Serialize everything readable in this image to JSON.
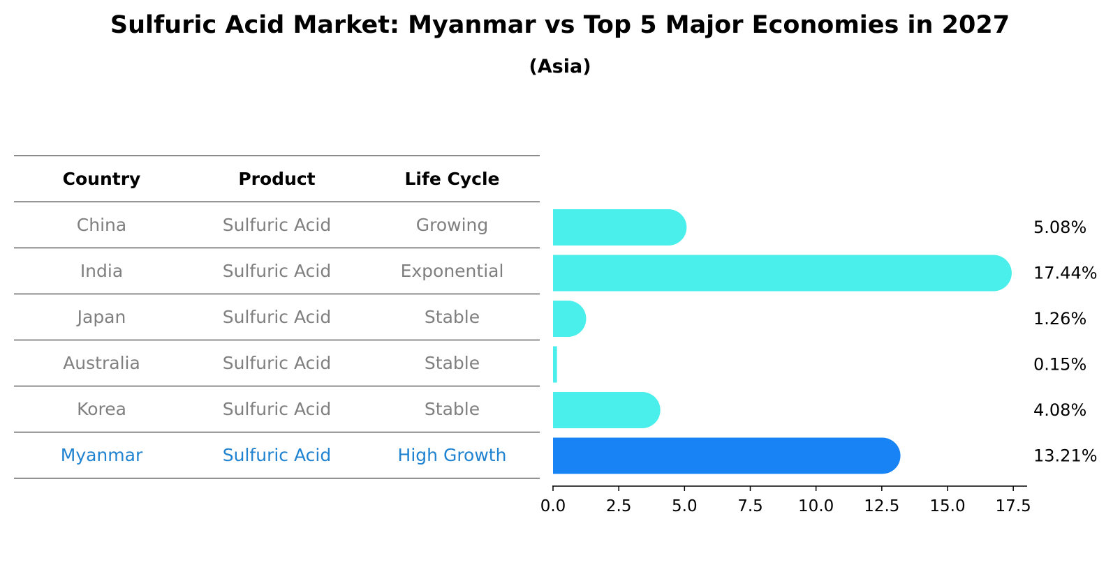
{
  "chart_data": {
    "type": "bar",
    "orientation": "horizontal",
    "title": "Sulfuric Acid Market: Myanmar vs Top 5 Major Economies in 2027",
    "subtitle": "(Asia)",
    "table": {
      "headers": [
        "Country",
        "Product",
        "Life Cycle"
      ],
      "rows": [
        [
          "China",
          "Sulfuric Acid",
          "Growing"
        ],
        [
          "India",
          "Sulfuric Acid",
          "Exponential"
        ],
        [
          "Japan",
          "Sulfuric Acid",
          "Stable"
        ],
        [
          "Australia",
          "Sulfuric Acid",
          "Stable"
        ],
        [
          "Korea",
          "Sulfuric Acid",
          "Stable"
        ],
        [
          "Myanmar",
          "Sulfuric Acid",
          "High Growth"
        ]
      ],
      "highlight_row": 5
    },
    "categories": [
      "China",
      "India",
      "Japan",
      "Australia",
      "Korea",
      "Myanmar"
    ],
    "values": [
      5.08,
      17.44,
      1.26,
      0.15,
      4.08,
      13.21
    ],
    "value_labels": [
      "5.08%",
      "17.44%",
      "1.26%",
      "0.15%",
      "4.08%",
      "13.21%"
    ],
    "xlim": [
      0,
      18.0
    ],
    "xticks": [
      0.0,
      2.5,
      5.0,
      7.5,
      10.0,
      12.5,
      15.0,
      17.5
    ],
    "xtick_labels": [
      "0.0",
      "2.5",
      "5.0",
      "7.5",
      "10.0",
      "12.5",
      "15.0",
      "17.5"
    ],
    "colors": {
      "default": "#4aeeea",
      "highlight": "#1783f5"
    }
  }
}
